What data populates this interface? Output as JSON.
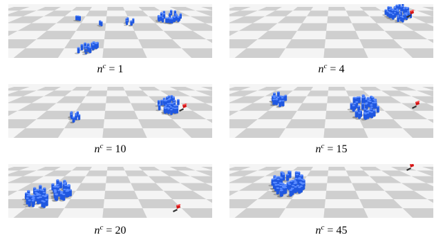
{
  "panels": [
    {
      "label_var": "n",
      "label_sup": "c",
      "label_eq": "= 1",
      "red_visible": false
    },
    {
      "label_var": "n",
      "label_sup": "c",
      "label_eq": "= 4",
      "red_visible": true
    },
    {
      "label_var": "n",
      "label_sup": "c",
      "label_eq": "= 10",
      "red_visible": true
    },
    {
      "label_var": "n",
      "label_sup": "c",
      "label_eq": "= 15",
      "red_visible": true
    },
    {
      "label_var": "n",
      "label_sup": "c",
      "label_eq": "= 20",
      "red_visible": true
    },
    {
      "label_var": "n",
      "label_sup": "c",
      "label_eq": "= 45",
      "red_visible": true
    }
  ],
  "colors": {
    "floor_light": "#f4f4f4",
    "floor_dark": "#cfcfcf",
    "robot_blue": "#1f57e0",
    "robot_top": "#5b8cff",
    "object_red": "#d41414",
    "shadow": "#6a6a6a"
  },
  "icons": [
    "blue-cylinder-robot",
    "red-target-object"
  ]
}
